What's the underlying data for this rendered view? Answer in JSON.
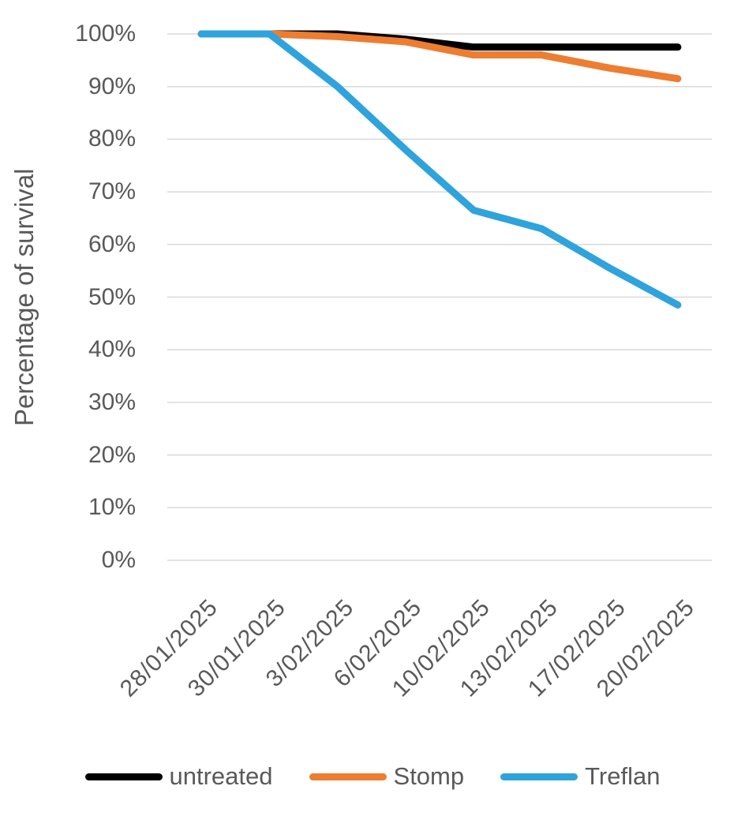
{
  "chart_data": {
    "type": "line",
    "title": "",
    "xlabel": "",
    "ylabel": "Percentage of survival",
    "categories": [
      "28/01/2025",
      "30/01/2025",
      "3/02/2025",
      "6/02/2025",
      "10/02/2025",
      "13/02/2025",
      "17/02/2025",
      "20/02/2025"
    ],
    "series": [
      {
        "name": "untreated",
        "color": "#000000",
        "values": [
          100,
          100,
          100,
          99,
          97.5,
          97.5,
          97.5,
          97.5
        ]
      },
      {
        "name": "Stomp",
        "color": "#ED7D31",
        "values": [
          100,
          100,
          99.5,
          98.5,
          96,
          96,
          93.5,
          91.5
        ]
      },
      {
        "name": "Treflan",
        "color": "#2EA3DC",
        "values": [
          100,
          100,
          90,
          78,
          66.5,
          63,
          55.5,
          48.5
        ]
      }
    ],
    "ylim": [
      0,
      100
    ],
    "y_ticks": [
      {
        "label": "100%",
        "value": 100
      },
      {
        "label": "90%",
        "value": 90
      },
      {
        "label": "80%",
        "value": 80
      },
      {
        "label": "70%",
        "value": 70
      },
      {
        "label": "60%",
        "value": 60
      },
      {
        "label": "50%",
        "value": 50
      },
      {
        "label": "40%",
        "value": 40
      },
      {
        "label": "30%",
        "value": 30
      },
      {
        "label": "20%",
        "value": 20
      },
      {
        "label": "10%",
        "value": 10
      },
      {
        "label": "0%",
        "value": 0
      }
    ],
    "grid": "horizontal",
    "legend_position": "bottom"
  },
  "colors": {
    "text": "#595959",
    "gridline": "#D9D9D9",
    "background": "#FFFFFF"
  }
}
